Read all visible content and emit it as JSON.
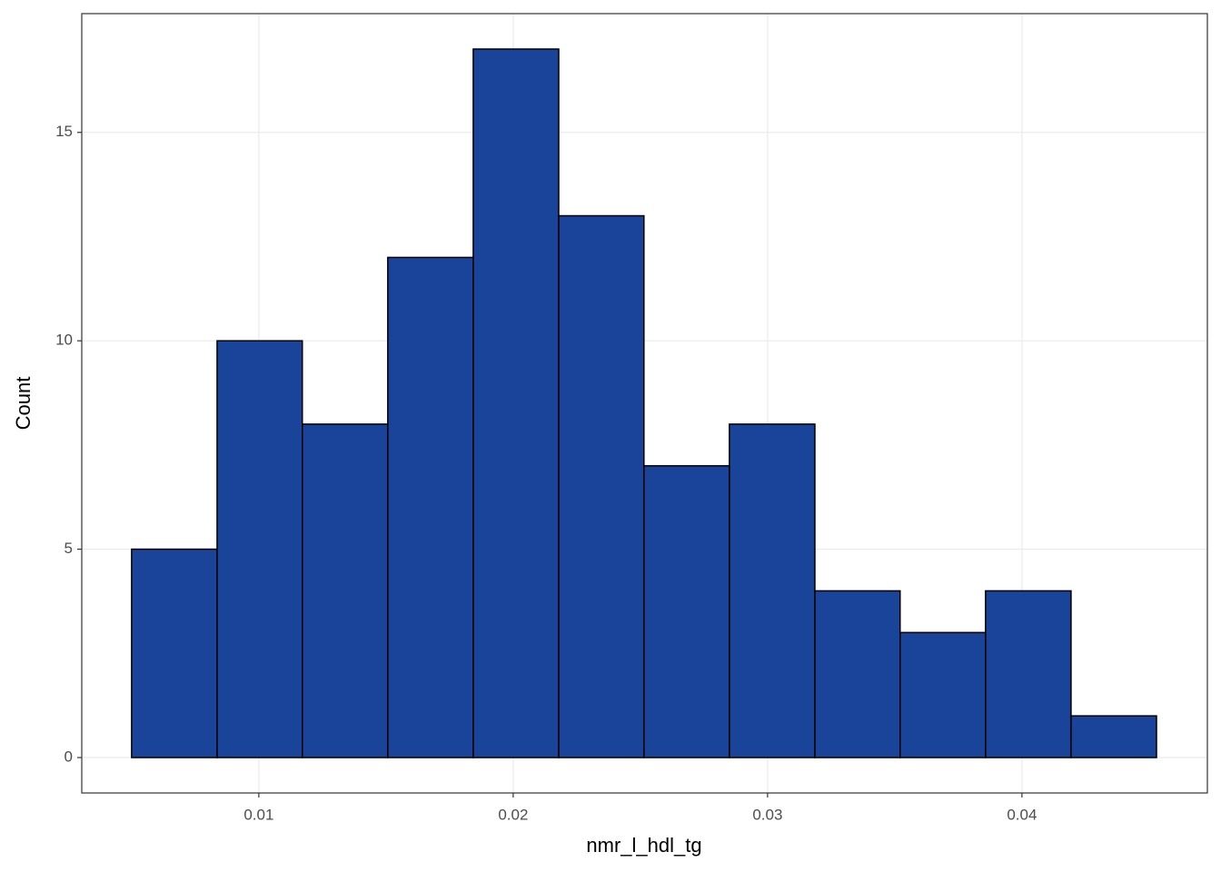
{
  "chart_data": {
    "type": "histogram",
    "x_label": "nmr_l_hdl_tg",
    "y_label": "Count",
    "bins": [
      0.005,
      0.00836,
      0.01171,
      0.01507,
      0.01843,
      0.02179,
      0.02514,
      0.0285,
      0.03186,
      0.03521,
      0.03857,
      0.04193,
      0.04529
    ],
    "counts": [
      5,
      10,
      8,
      12,
      17,
      13,
      7,
      8,
      4,
      3,
      4,
      1
    ],
    "color": "#1a4499",
    "edge_color": "#000000",
    "xlim": [
      0.00304,
      0.04729
    ],
    "ylim": [
      -0.85,
      17.85
    ],
    "xticks": [
      0.01,
      0.02,
      0.03,
      0.04
    ],
    "yticks": [
      0,
      5,
      10,
      15
    ],
    "grid": true
  }
}
